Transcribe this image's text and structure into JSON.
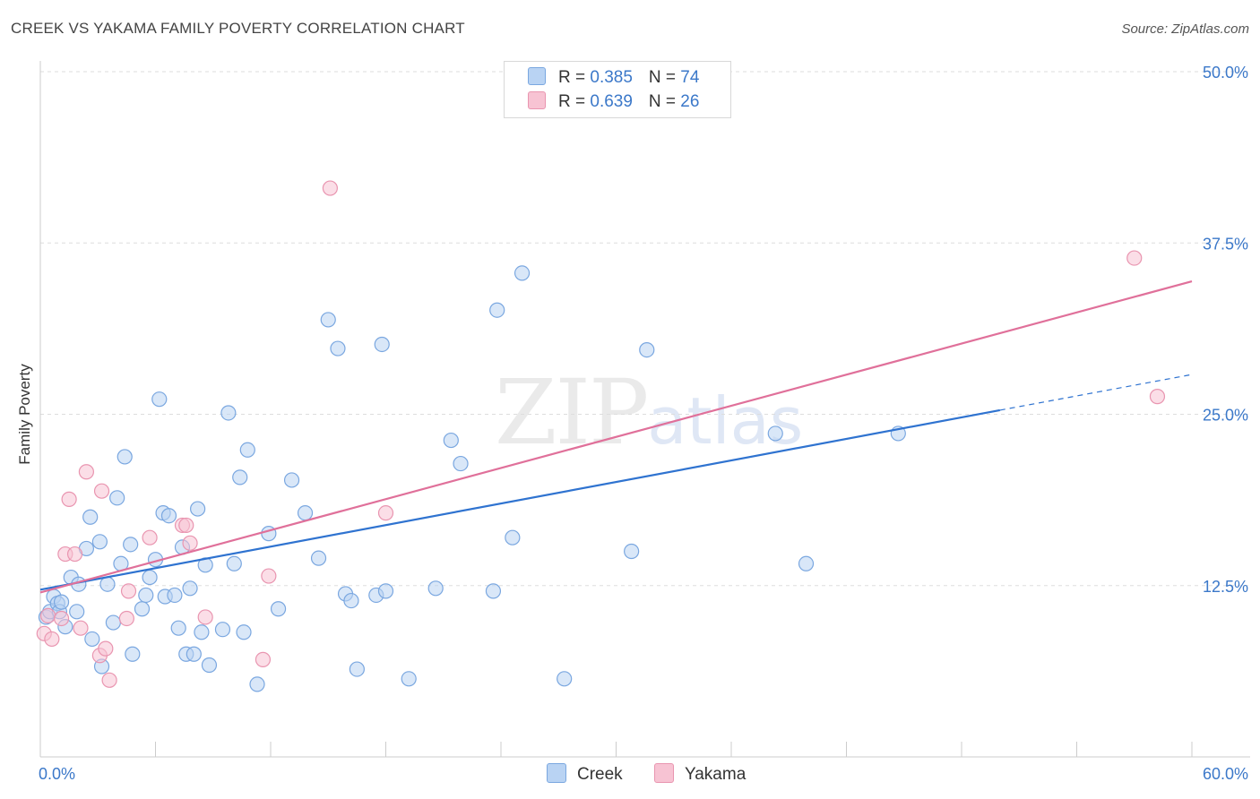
{
  "title": "CREEK VS YAKAMA FAMILY POVERTY CORRELATION CHART",
  "source": "Source: ZipAtlas.com",
  "watermark": {
    "zip": "ZIP",
    "atlas": "atlas"
  },
  "legend": {
    "rows": [
      {
        "r_label": "R = ",
        "r_value": "0.385",
        "n_label": "N = ",
        "n_value": "74"
      },
      {
        "r_label": "R = ",
        "r_value": "0.639",
        "n_label": "N = ",
        "n_value": "26"
      }
    ]
  },
  "colors": {
    "creek_fill": "#b9d3f3",
    "creek_stroke": "#7aa7e0",
    "creek_line": "#2f73d0",
    "yakama_fill": "#f7c3d3",
    "yakama_stroke": "#e995b0",
    "yakama_line": "#e0709a",
    "axis_text": "#3b78c9",
    "grid": "#dddddd"
  },
  "chart_data": {
    "type": "scatter",
    "title": "CREEK VS YAKAMA FAMILY POVERTY CORRELATION CHART",
    "xlabel": "",
    "ylabel": "Family Poverty",
    "xlim": [
      0,
      60
    ],
    "ylim": [
      0,
      50
    ],
    "x_tick_labels": [
      "0.0%",
      "60.0%"
    ],
    "y_ticks": [
      12.5,
      25.0,
      37.5,
      50.0
    ],
    "y_tick_labels": [
      "12.5%",
      "25.0%",
      "37.5%",
      "50.0%"
    ],
    "legend_position": "top-center",
    "series": [
      {
        "name": "Creek",
        "r": 0.385,
        "n": 74,
        "trend": {
          "x0": 0,
          "y0": 12.2,
          "x1": 50,
          "y1": 25.3,
          "dashed_to_x": 60,
          "dashed_to_y": 27.9
        },
        "points": [
          [
            0.3,
            10.2
          ],
          [
            0.5,
            10.6
          ],
          [
            0.7,
            11.7
          ],
          [
            0.9,
            11.2
          ],
          [
            1.0,
            10.6
          ],
          [
            1.1,
            11.3
          ],
          [
            1.3,
            9.5
          ],
          [
            1.6,
            13.1
          ],
          [
            2.0,
            12.6
          ],
          [
            1.9,
            10.6
          ],
          [
            2.4,
            15.2
          ],
          [
            2.6,
            17.5
          ],
          [
            2.7,
            8.6
          ],
          [
            3.1,
            15.7
          ],
          [
            3.2,
            6.6
          ],
          [
            3.5,
            12.6
          ],
          [
            3.8,
            9.8
          ],
          [
            4.0,
            18.9
          ],
          [
            4.2,
            14.1
          ],
          [
            4.4,
            21.9
          ],
          [
            4.7,
            15.5
          ],
          [
            4.8,
            7.5
          ],
          [
            5.3,
            10.8
          ],
          [
            5.5,
            11.8
          ],
          [
            5.7,
            13.1
          ],
          [
            6.0,
            14.4
          ],
          [
            6.2,
            26.1
          ],
          [
            6.4,
            17.8
          ],
          [
            6.5,
            11.7
          ],
          [
            6.7,
            17.6
          ],
          [
            7.0,
            11.8
          ],
          [
            7.2,
            9.4
          ],
          [
            7.4,
            15.3
          ],
          [
            7.6,
            7.5
          ],
          [
            7.8,
            12.3
          ],
          [
            8.0,
            7.5
          ],
          [
            8.2,
            18.1
          ],
          [
            8.4,
            9.1
          ],
          [
            8.6,
            14.0
          ],
          [
            8.8,
            6.7
          ],
          [
            9.5,
            9.3
          ],
          [
            9.8,
            25.1
          ],
          [
            10.1,
            14.1
          ],
          [
            10.4,
            20.4
          ],
          [
            10.6,
            9.1
          ],
          [
            10.8,
            22.4
          ],
          [
            11.3,
            5.3
          ],
          [
            11.9,
            16.3
          ],
          [
            12.4,
            10.8
          ],
          [
            13.1,
            20.2
          ],
          [
            13.8,
            17.8
          ],
          [
            14.5,
            14.5
          ],
          [
            15.0,
            31.9
          ],
          [
            15.5,
            29.8
          ],
          [
            15.9,
            11.9
          ],
          [
            16.2,
            11.4
          ],
          [
            16.5,
            6.4
          ],
          [
            17.5,
            11.8
          ],
          [
            17.8,
            30.1
          ],
          [
            18.0,
            12.1
          ],
          [
            19.2,
            5.7
          ],
          [
            20.6,
            12.3
          ],
          [
            21.4,
            23.1
          ],
          [
            21.9,
            21.4
          ],
          [
            23.6,
            12.1
          ],
          [
            23.8,
            32.6
          ],
          [
            24.6,
            16.0
          ],
          [
            25.1,
            35.3
          ],
          [
            27.3,
            5.7
          ],
          [
            30.8,
            15.0
          ],
          [
            31.6,
            29.7
          ],
          [
            38.3,
            23.6
          ],
          [
            39.9,
            14.1
          ],
          [
            44.7,
            23.6
          ]
        ]
      },
      {
        "name": "Yakama",
        "r": 0.639,
        "n": 26,
        "trend": {
          "x0": 0,
          "y0": 12.0,
          "x1": 60,
          "y1": 34.7
        },
        "points": [
          [
            0.2,
            9.0
          ],
          [
            0.4,
            10.3
          ],
          [
            0.6,
            8.6
          ],
          [
            1.1,
            10.1
          ],
          [
            1.3,
            14.8
          ],
          [
            1.5,
            18.8
          ],
          [
            1.8,
            14.8
          ],
          [
            2.1,
            9.4
          ],
          [
            2.4,
            20.8
          ],
          [
            3.1,
            7.4
          ],
          [
            3.2,
            19.4
          ],
          [
            3.4,
            7.9
          ],
          [
            3.6,
            5.6
          ],
          [
            4.5,
            10.1
          ],
          [
            4.6,
            12.1
          ],
          [
            5.7,
            16.0
          ],
          [
            7.4,
            16.9
          ],
          [
            7.6,
            16.9
          ],
          [
            7.8,
            15.6
          ],
          [
            8.6,
            10.2
          ],
          [
            11.6,
            7.1
          ],
          [
            11.9,
            13.2
          ],
          [
            15.1,
            41.5
          ],
          [
            18.0,
            17.8
          ],
          [
            57.0,
            36.4
          ],
          [
            58.2,
            26.3
          ]
        ]
      }
    ]
  }
}
